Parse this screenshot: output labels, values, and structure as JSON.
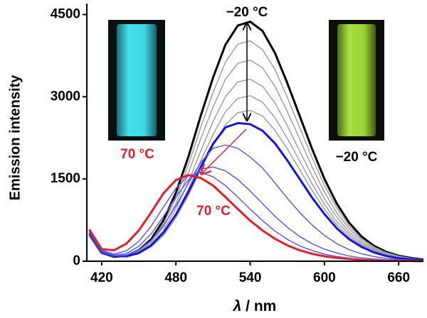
{
  "chart_data": {
    "type": "line",
    "xlabel_symbol": "λ",
    "xlabel_unit": " / nm",
    "ylabel": "Emission intensity",
    "xlim": [
      408,
      680
    ],
    "ylim": [
      0,
      4700
    ],
    "xticks": [
      420,
      480,
      540,
      600,
      660
    ],
    "yticks": [
      0,
      1500,
      3000,
      4500
    ],
    "annotations": [
      "−20 °C",
      "70 °C",
      "−20 °C",
      "70 °C"
    ],
    "x": [
      410,
      420,
      430,
      440,
      450,
      460,
      470,
      480,
      490,
      500,
      510,
      520,
      530,
      540,
      550,
      560,
      570,
      580,
      590,
      600,
      610,
      620,
      630,
      640,
      650,
      660,
      670,
      680
    ],
    "series": [
      {
        "color": "#000000",
        "width": 3,
        "values": [
          480,
          150,
          80,
          100,
          200,
          400,
          750,
          1250,
          1900,
          2650,
          3350,
          3950,
          4300,
          4370,
          4200,
          3800,
          3250,
          2650,
          2050,
          1500,
          1050,
          700,
          450,
          280,
          170,
          100,
          60,
          30
        ]
      },
      {
        "color": "#a0a0a0",
        "width": 1.5,
        "values": [
          480,
          150,
          80,
          95,
          185,
          370,
          690,
          1150,
          1750,
          2440,
          3080,
          3630,
          3960,
          4020,
          3860,
          3500,
          2990,
          2440,
          1890,
          1380,
          970,
          640,
          410,
          260,
          155,
          90,
          55,
          30
        ]
      },
      {
        "color": "#a0a0a0",
        "width": 1.5,
        "values": [
          480,
          150,
          80,
          90,
          170,
          340,
          630,
          1050,
          1600,
          2230,
          2810,
          3320,
          3610,
          3670,
          3530,
          3190,
          2730,
          2230,
          1720,
          1260,
          880,
          590,
          380,
          235,
          145,
          85,
          50,
          25
        ]
      },
      {
        "color": "#a0a0a0",
        "width": 1.5,
        "values": [
          480,
          150,
          80,
          85,
          155,
          305,
          570,
          950,
          1440,
          2010,
          2550,
          3000,
          3270,
          3320,
          3190,
          2890,
          2470,
          2010,
          1560,
          1140,
          800,
          530,
          340,
          215,
          130,
          75,
          45,
          25
        ]
      },
      {
        "color": "#a0a0a0",
        "width": 1.5,
        "values": [
          480,
          150,
          80,
          80,
          145,
          280,
          520,
          860,
          1310,
          1830,
          2310,
          2730,
          2970,
          3020,
          2900,
          2620,
          2240,
          1830,
          1410,
          1040,
          720,
          480,
          310,
          195,
          115,
          70,
          40,
          20
        ]
      },
      {
        "color": "#a0a0a0",
        "width": 1.5,
        "values": [
          480,
          150,
          80,
          80,
          135,
          260,
          470,
          790,
          1200,
          1670,
          2110,
          2490,
          2710,
          2750,
          2650,
          2390,
          2050,
          1670,
          1290,
          950,
          660,
          440,
          285,
          175,
          105,
          65,
          40,
          20
        ]
      },
      {
        "color": "#1414e0",
        "width": 3,
        "values": [
          520,
          170,
          90,
          90,
          150,
          290,
          520,
          850,
          1260,
          1720,
          2140,
          2440,
          2520,
          2500,
          2380,
          2150,
          1840,
          1500,
          1160,
          860,
          600,
          400,
          260,
          160,
          95,
          55,
          35,
          20
        ]
      },
      {
        "color": "#5c5ce8",
        "width": 1.5,
        "values": [
          540,
          180,
          100,
          110,
          200,
          380,
          650,
          1010,
          1420,
          1800,
          2060,
          2120,
          2060,
          1900,
          1700,
          1430,
          1150,
          890,
          660,
          470,
          320,
          210,
          135,
          85,
          50,
          30,
          20,
          10
        ]
      },
      {
        "color": "#5c5ce8",
        "width": 1.5,
        "values": [
          560,
          190,
          110,
          140,
          270,
          500,
          820,
          1170,
          1480,
          1680,
          1720,
          1650,
          1490,
          1280,
          1050,
          820,
          620,
          450,
          320,
          220,
          150,
          95,
          60,
          40,
          25,
          15,
          10,
          5
        ]
      },
      {
        "color": "#5c5ce8",
        "width": 1.5,
        "values": [
          570,
          200,
          130,
          190,
          360,
          640,
          990,
          1330,
          1560,
          1620,
          1540,
          1380,
          1170,
          950,
          740,
          550,
          400,
          280,
          195,
          130,
          85,
          55,
          35,
          20,
          15,
          10,
          5,
          5
        ]
      },
      {
        "color": "#e0202a",
        "width": 3,
        "values": [
          580,
          220,
          200,
          320,
          560,
          890,
          1240,
          1480,
          1570,
          1520,
          1380,
          1170,
          950,
          740,
          560,
          410,
          290,
          200,
          135,
          90,
          60,
          40,
          25,
          15,
          10,
          5,
          5,
          0
        ]
      }
    ]
  }
}
